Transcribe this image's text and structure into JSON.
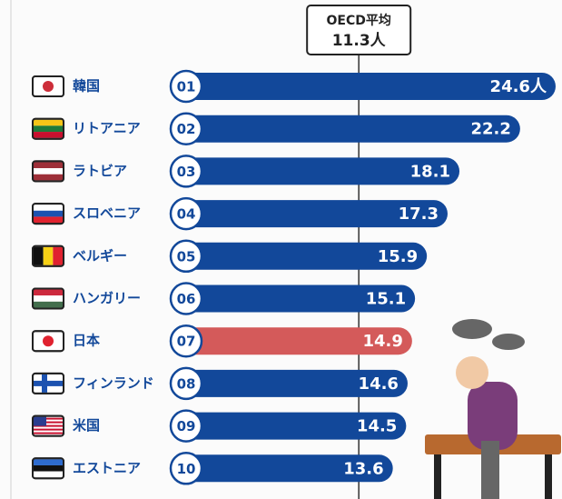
{
  "chart_data": {
    "type": "bar",
    "orientation": "horizontal",
    "categories": [
      "韓国",
      "リトアニア",
      "ラトビア",
      "スロベニア",
      "ベルギー",
      "ハンガリー",
      "日本",
      "フィンランド",
      "米国",
      "エストニア"
    ],
    "ranks": [
      "01",
      "02",
      "03",
      "04",
      "05",
      "06",
      "07",
      "08",
      "09",
      "10"
    ],
    "values": [
      24.6,
      22.2,
      18.1,
      17.3,
      15.9,
      15.1,
      14.9,
      14.6,
      14.5,
      13.6
    ],
    "value_labels": [
      "24.6人",
      "22.2",
      "18.1",
      "17.3",
      "15.9",
      "15.1",
      "14.9",
      "14.6",
      "14.5",
      "13.6"
    ],
    "colors": [
      "#12489a",
      "#12489a",
      "#12489a",
      "#12489a",
      "#12489a",
      "#12489a",
      "#d45a5a",
      "#12489a",
      "#12489a",
      "#12489a"
    ],
    "xlim": [
      0,
      25
    ],
    "reference": {
      "label": "OECD平均",
      "value": 11.3,
      "value_label": "11.3人"
    }
  }
}
